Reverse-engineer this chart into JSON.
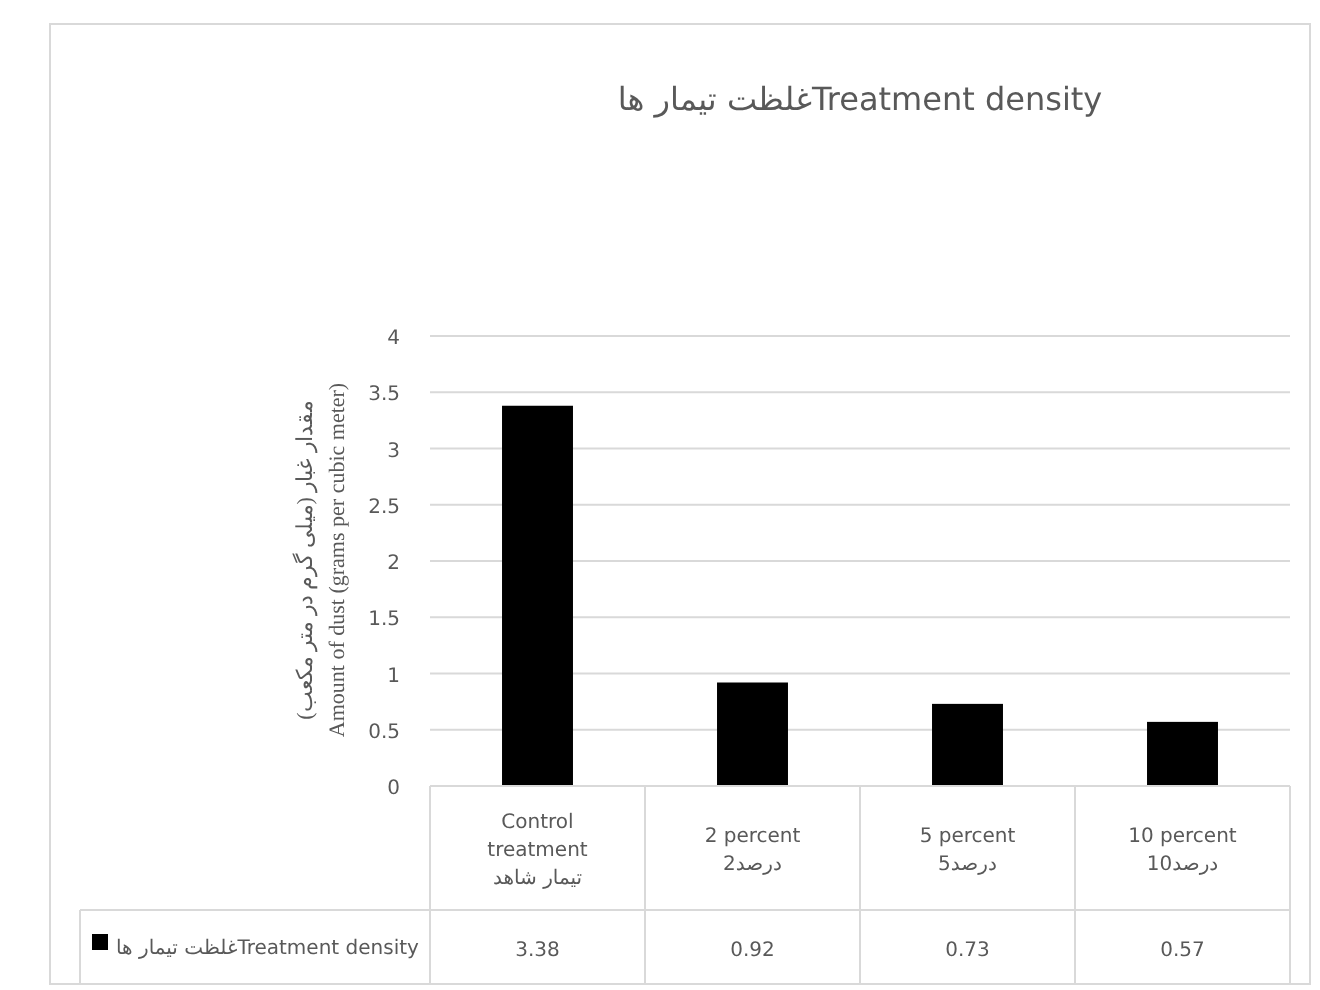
{
  "chart_data": {
    "type": "bar",
    "title": "غلظت تیمار هاTreatment density",
    "ylabel": "مقدار غبار (میلی گرم در متر مکعب)\nAmount of dust (grams per cubic meter)",
    "categories": [
      "Control treatment\nتیمار شاهد",
      "2 percent\n2درصد",
      "5 percent\n5درصد",
      "10 percent\n10درصد"
    ],
    "series": [
      {
        "name": "غلظت تیمار هاTreatment density",
        "color": "#000000",
        "values": [
          3.38,
          0.92,
          0.73,
          0.57
        ]
      }
    ],
    "ylim": [
      0,
      4
    ],
    "yticks": [
      0,
      0.5,
      1,
      1.5,
      2,
      2.5,
      3,
      3.5,
      4
    ],
    "grid": "y",
    "data_labels": true,
    "legend": "bottom"
  }
}
